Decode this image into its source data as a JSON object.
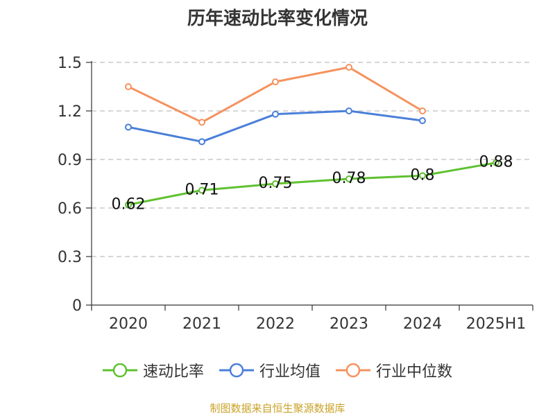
{
  "chart_data": {
    "type": "line",
    "title": "历年速动比率变化情况",
    "xlabel": "",
    "ylabel": "",
    "categories": [
      "2020",
      "2021",
      "2022",
      "2023",
      "2024",
      "2025H1"
    ],
    "yticks": [
      "0",
      "0.3",
      "0.6",
      "0.9",
      "1.2",
      "1.5"
    ],
    "ylim": [
      0,
      1.5
    ],
    "grid": true,
    "legend_position": "bottom",
    "series": [
      {
        "name": "速动比率",
        "color": "#5fc130",
        "values": [
          0.62,
          0.71,
          0.75,
          0.78,
          0.8,
          0.88
        ],
        "labels": [
          "0.62",
          "0.71",
          "0.75",
          "0.78",
          "0.8",
          "0.88"
        ]
      },
      {
        "name": "行业均值",
        "color": "#4a7fd9",
        "values": [
          1.1,
          1.01,
          1.18,
          1.2,
          1.14,
          null
        ]
      },
      {
        "name": "行业中位数",
        "color": "#f5925e",
        "values": [
          1.35,
          1.13,
          1.38,
          1.47,
          1.2,
          null
        ]
      }
    ]
  },
  "source_text": "制图数据来自恒生聚源数据库"
}
